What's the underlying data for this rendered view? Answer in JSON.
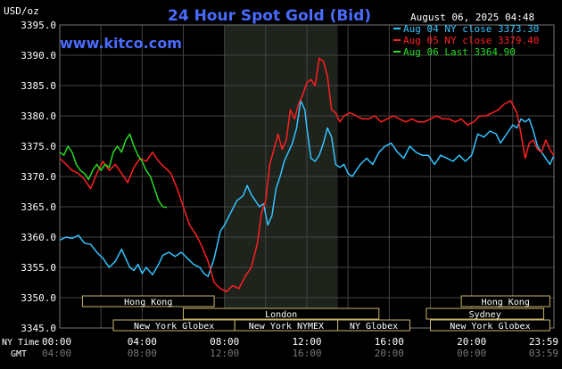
{
  "header": {
    "title": "24 Hour Spot Gold (Bid)",
    "unit": "USD/oz",
    "site": "www.kitco.com",
    "timestamp": "August 06, 2025 04:48"
  },
  "legend": [
    {
      "label": "Aug 04 NY close 3373.30",
      "color": "#33c3ff"
    },
    {
      "label": "Aug 05 NY close 3379.40",
      "color": "#ff2020"
    },
    {
      "label": "Aug 06 Last 3364.90",
      "color": "#22dd22"
    }
  ],
  "axis_row_labels": {
    "ny": "NY Time",
    "gmt": "GMT"
  },
  "markets": [
    {
      "name": "Hong Kong",
      "start": 1.1,
      "end": 7.5,
      "row": 0
    },
    {
      "name": "London",
      "start": 6.0,
      "end": 15.5,
      "row": 1
    },
    {
      "name": "New York Globex",
      "start": 2.6,
      "end": 8.5,
      "row": 2
    },
    {
      "name": "New York NYMEX",
      "start": 8.5,
      "end": 13.5,
      "row": 2
    },
    {
      "name": "NY Globex",
      "start": 13.5,
      "end": 17.0,
      "row": 2
    },
    {
      "name": "Hong Kong",
      "start": 19.5,
      "end": 23.8,
      "row": 0
    },
    {
      "name": "Sydney",
      "start": 17.8,
      "end": 23.5,
      "row": 1
    },
    {
      "name": "New York Globex",
      "start": 18.0,
      "end": 23.8,
      "row": 2
    }
  ],
  "chart_data": {
    "type": "line",
    "title": "24 Hour Spot Gold (Bid)",
    "ylabel": "USD/oz",
    "ylim": [
      3345,
      3395
    ],
    "xlim": [
      0,
      24
    ],
    "yticks": [
      "3345.0",
      "3350.0",
      "3355.0",
      "3360.0",
      "3365.0",
      "3370.0",
      "3375.0",
      "3380.0",
      "3385.0",
      "3390.0",
      "3395.0"
    ],
    "xticks_ny": [
      "00:00",
      "04:00",
      "08:00",
      "12:00",
      "16:00",
      "20:00",
      "23:59"
    ],
    "xticks_gmt": [
      "04:00",
      "08:00",
      "12:00",
      "16:00",
      "20:00",
      "00:00",
      "03:59"
    ],
    "highlight_range": [
      8.0,
      13.5
    ],
    "series": [
      {
        "name": "Aug 04 NY close 3373.30",
        "color": "#33c3ff",
        "points": [
          [
            0.0,
            3359.5
          ],
          [
            0.3,
            3360.0
          ],
          [
            0.6,
            3359.8
          ],
          [
            0.9,
            3360.3
          ],
          [
            1.2,
            3359.0
          ],
          [
            1.5,
            3358.8
          ],
          [
            1.8,
            3357.5
          ],
          [
            2.1,
            3356.5
          ],
          [
            2.4,
            3355.0
          ],
          [
            2.7,
            3356.0
          ],
          [
            3.0,
            3358.0
          ],
          [
            3.2,
            3356.5
          ],
          [
            3.4,
            3355.0
          ],
          [
            3.6,
            3354.5
          ],
          [
            3.8,
            3355.5
          ],
          [
            4.0,
            3354.0
          ],
          [
            4.2,
            3355.0
          ],
          [
            4.5,
            3353.8
          ],
          [
            4.8,
            3355.5
          ],
          [
            5.0,
            3357.0
          ],
          [
            5.3,
            3357.5
          ],
          [
            5.6,
            3356.8
          ],
          [
            5.9,
            3357.5
          ],
          [
            6.2,
            3356.5
          ],
          [
            6.5,
            3355.5
          ],
          [
            6.8,
            3355.0
          ],
          [
            7.0,
            3354.0
          ],
          [
            7.2,
            3353.5
          ],
          [
            7.5,
            3356.5
          ],
          [
            7.8,
            3361.0
          ],
          [
            8.0,
            3362.0
          ],
          [
            8.3,
            3364.0
          ],
          [
            8.6,
            3366.0
          ],
          [
            8.9,
            3366.8
          ],
          [
            9.1,
            3368.5
          ],
          [
            9.3,
            3367.0
          ],
          [
            9.5,
            3366.0
          ],
          [
            9.7,
            3365.0
          ],
          [
            9.9,
            3365.5
          ],
          [
            10.1,
            3362.0
          ],
          [
            10.3,
            3363.5
          ],
          [
            10.5,
            3368.0
          ],
          [
            10.7,
            3370.0
          ],
          [
            10.9,
            3372.5
          ],
          [
            11.1,
            3374.0
          ],
          [
            11.3,
            3375.5
          ],
          [
            11.5,
            3378.0
          ],
          [
            11.7,
            3382.5
          ],
          [
            11.9,
            3381.0
          ],
          [
            12.0,
            3378.0
          ],
          [
            12.2,
            3373.0
          ],
          [
            12.4,
            3372.5
          ],
          [
            12.6,
            3373.5
          ],
          [
            12.8,
            3375.5
          ],
          [
            13.0,
            3378.0
          ],
          [
            13.2,
            3376.5
          ],
          [
            13.4,
            3372.0
          ],
          [
            13.6,
            3371.5
          ],
          [
            13.8,
            3372.0
          ],
          [
            14.0,
            3370.5
          ],
          [
            14.2,
            3370.0
          ],
          [
            14.4,
            3371.0
          ],
          [
            14.6,
            3372.0
          ],
          [
            14.9,
            3373.0
          ],
          [
            15.2,
            3372.0
          ],
          [
            15.5,
            3374.0
          ],
          [
            15.8,
            3375.0
          ],
          [
            16.1,
            3375.5
          ],
          [
            16.4,
            3374.0
          ],
          [
            16.7,
            3373.0
          ],
          [
            17.0,
            3375.0
          ],
          [
            17.3,
            3374.0
          ],
          [
            17.6,
            3373.5
          ],
          [
            17.9,
            3373.5
          ],
          [
            18.2,
            3372.0
          ],
          [
            18.5,
            3373.5
          ],
          [
            18.8,
            3373.0
          ],
          [
            19.1,
            3372.5
          ],
          [
            19.4,
            3373.5
          ],
          [
            19.7,
            3372.5
          ],
          [
            20.0,
            3373.5
          ],
          [
            20.3,
            3377.0
          ],
          [
            20.6,
            3376.5
          ],
          [
            20.9,
            3377.5
          ],
          [
            21.2,
            3377.0
          ],
          [
            21.4,
            3375.5
          ],
          [
            21.6,
            3376.5
          ],
          [
            21.8,
            3377.5
          ],
          [
            22.0,
            3378.5
          ],
          [
            22.2,
            3378.0
          ],
          [
            22.4,
            3379.5
          ],
          [
            22.6,
            3379.0
          ],
          [
            22.8,
            3379.5
          ],
          [
            23.0,
            3377.5
          ],
          [
            23.2,
            3375.0
          ],
          [
            23.4,
            3374.0
          ],
          [
            23.6,
            3373.0
          ],
          [
            23.8,
            3372.0
          ],
          [
            23.98,
            3373.3
          ]
        ]
      },
      {
        "name": "Aug 05 NY close 3379.40",
        "color": "#ff2020",
        "points": [
          [
            0.0,
            3373.0
          ],
          [
            0.3,
            3372.0
          ],
          [
            0.6,
            3371.0
          ],
          [
            0.9,
            3370.5
          ],
          [
            1.2,
            3369.5
          ],
          [
            1.5,
            3368.0
          ],
          [
            1.8,
            3370.5
          ],
          [
            2.1,
            3372.5
          ],
          [
            2.4,
            3371.0
          ],
          [
            2.7,
            3372.0
          ],
          [
            3.0,
            3370.5
          ],
          [
            3.3,
            3369.0
          ],
          [
            3.6,
            3371.5
          ],
          [
            3.9,
            3373.0
          ],
          [
            4.2,
            3372.5
          ],
          [
            4.5,
            3374.0
          ],
          [
            4.8,
            3372.5
          ],
          [
            5.1,
            3371.5
          ],
          [
            5.4,
            3370.5
          ],
          [
            5.7,
            3368.0
          ],
          [
            6.0,
            3365.0
          ],
          [
            6.3,
            3362.0
          ],
          [
            6.6,
            3360.5
          ],
          [
            6.9,
            3358.5
          ],
          [
            7.2,
            3356.0
          ],
          [
            7.5,
            3352.5
          ],
          [
            7.8,
            3351.5
          ],
          [
            8.1,
            3351.0
          ],
          [
            8.4,
            3352.0
          ],
          [
            8.7,
            3351.5
          ],
          [
            9.0,
            3353.5
          ],
          [
            9.3,
            3355.0
          ],
          [
            9.6,
            3359.0
          ],
          [
            9.8,
            3364.0
          ],
          [
            10.0,
            3366.0
          ],
          [
            10.2,
            3372.0
          ],
          [
            10.4,
            3374.5
          ],
          [
            10.6,
            3377.0
          ],
          [
            10.8,
            3374.5
          ],
          [
            11.0,
            3376.0
          ],
          [
            11.2,
            3381.0
          ],
          [
            11.4,
            3379.5
          ],
          [
            11.6,
            3382.0
          ],
          [
            11.8,
            3383.5
          ],
          [
            12.0,
            3385.5
          ],
          [
            12.2,
            3386.0
          ],
          [
            12.4,
            3385.0
          ],
          [
            12.6,
            3389.5
          ],
          [
            12.8,
            3389.0
          ],
          [
            13.0,
            3386.5
          ],
          [
            13.2,
            3381.0
          ],
          [
            13.4,
            3380.5
          ],
          [
            13.6,
            3379.0
          ],
          [
            13.8,
            3380.0
          ],
          [
            14.1,
            3380.5
          ],
          [
            14.4,
            3380.0
          ],
          [
            14.7,
            3379.5
          ],
          [
            15.0,
            3379.5
          ],
          [
            15.3,
            3380.0
          ],
          [
            15.6,
            3379.0
          ],
          [
            15.9,
            3379.5
          ],
          [
            16.2,
            3380.0
          ],
          [
            16.5,
            3379.5
          ],
          [
            16.8,
            3379.0
          ],
          [
            17.1,
            3379.5
          ],
          [
            17.4,
            3379.0
          ],
          [
            17.7,
            3379.0
          ],
          [
            18.0,
            3379.5
          ],
          [
            18.3,
            3380.0
          ],
          [
            18.6,
            3379.5
          ],
          [
            18.9,
            3379.5
          ],
          [
            19.2,
            3379.0
          ],
          [
            19.5,
            3379.5
          ],
          [
            19.8,
            3378.5
          ],
          [
            20.1,
            3379.0
          ],
          [
            20.4,
            3380.0
          ],
          [
            20.7,
            3380.0
          ],
          [
            21.0,
            3380.5
          ],
          [
            21.3,
            3381.0
          ],
          [
            21.6,
            3382.0
          ],
          [
            21.9,
            3382.5
          ],
          [
            22.2,
            3380.5
          ],
          [
            22.4,
            3377.0
          ],
          [
            22.6,
            3373.0
          ],
          [
            22.8,
            3375.5
          ],
          [
            23.0,
            3376.0
          ],
          [
            23.2,
            3374.5
          ],
          [
            23.4,
            3374.0
          ],
          [
            23.6,
            3376.0
          ],
          [
            23.8,
            3374.5
          ],
          [
            23.98,
            3373.5
          ]
        ]
      },
      {
        "name": "Aug 06 Last 3364.90",
        "color": "#22dd22",
        "points": [
          [
            0.0,
            3374.0
          ],
          [
            0.2,
            3373.5
          ],
          [
            0.4,
            3375.0
          ],
          [
            0.6,
            3374.0
          ],
          [
            0.8,
            3372.0
          ],
          [
            1.0,
            3371.0
          ],
          [
            1.2,
            3370.5
          ],
          [
            1.4,
            3369.5
          ],
          [
            1.6,
            3371.0
          ],
          [
            1.8,
            3372.0
          ],
          [
            2.0,
            3371.0
          ],
          [
            2.2,
            3372.0
          ],
          [
            2.4,
            3371.5
          ],
          [
            2.6,
            3374.0
          ],
          [
            2.8,
            3375.0
          ],
          [
            3.0,
            3374.0
          ],
          [
            3.2,
            3376.0
          ],
          [
            3.4,
            3377.0
          ],
          [
            3.6,
            3375.0
          ],
          [
            3.8,
            3373.5
          ],
          [
            4.0,
            3372.5
          ],
          [
            4.2,
            3371.0
          ],
          [
            4.4,
            3370.0
          ],
          [
            4.6,
            3368.0
          ],
          [
            4.8,
            3366.0
          ],
          [
            5.0,
            3365.0
          ],
          [
            5.2,
            3364.9
          ]
        ]
      }
    ]
  }
}
